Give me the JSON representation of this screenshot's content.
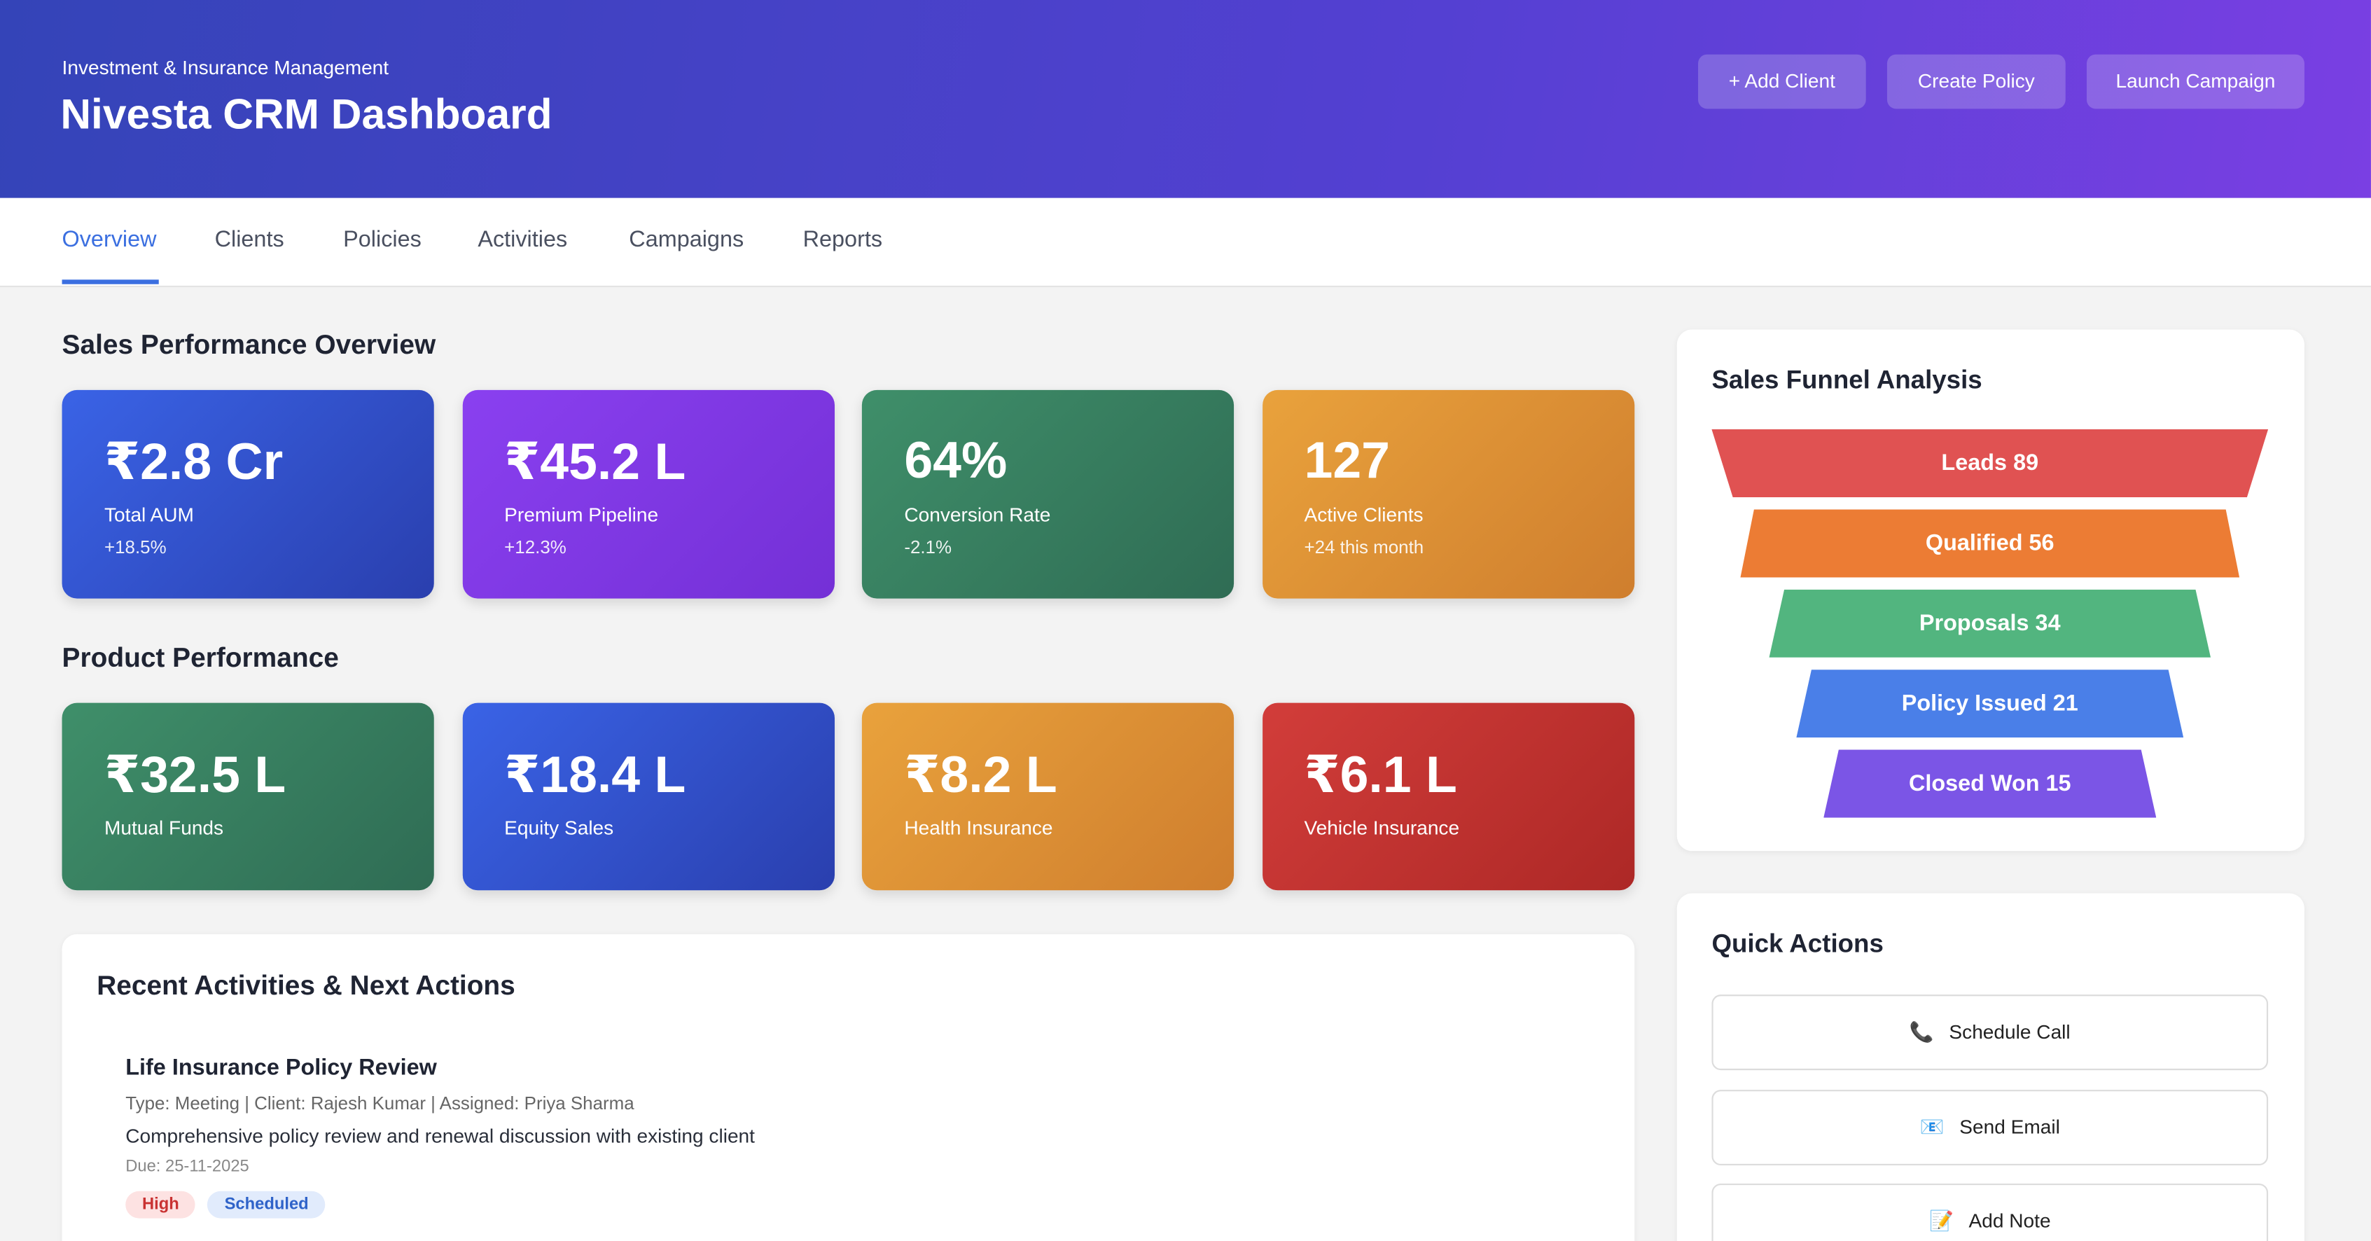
{
  "header": {
    "subtitle": "Investment & Insurance Management",
    "title": "Nivesta CRM Dashboard",
    "buttons": [
      "+ Add Client",
      "Create Policy",
      "Launch Campaign"
    ]
  },
  "nav": {
    "tabs": [
      "Overview",
      "Clients",
      "Policies",
      "Activities",
      "Campaigns",
      "Reports"
    ],
    "active": 0
  },
  "sales": {
    "title": "Sales Performance Overview",
    "cards": [
      {
        "value": "₹2.8 Cr",
        "label": "Total AUM",
        "change": "+18.5%"
      },
      {
        "value": "₹45.2 L",
        "label": "Premium Pipeline",
        "change": "+12.3%"
      },
      {
        "value": "64%",
        "label": "Conversion Rate",
        "change": "-2.1%"
      },
      {
        "value": "127",
        "label": "Active Clients",
        "change": "+24 this month"
      }
    ]
  },
  "product": {
    "title": "Product Performance",
    "cards": [
      {
        "value": "₹32.5 L",
        "label": "Mutual Funds"
      },
      {
        "value": "₹18.4 L",
        "label": "Equity Sales"
      },
      {
        "value": "₹8.2 L",
        "label": "Health Insurance"
      },
      {
        "value": "₹6.1 L",
        "label": "Vehicle Insurance"
      }
    ]
  },
  "activities": {
    "title": "Recent Activities & Next Actions",
    "items": [
      {
        "title": "Life Insurance Policy Review",
        "meta": "Type: Meeting | Client: Rajesh Kumar | Assigned: Priya Sharma",
        "description": "Comprehensive policy review and renewal discussion with existing client",
        "due": "Due: 25-11-2025",
        "tags": [
          "High",
          "Scheduled"
        ]
      }
    ]
  },
  "funnel": {
    "title": "Sales Funnel Analysis",
    "stages": [
      {
        "name": "Leads",
        "count": 89
      },
      {
        "name": "Qualified",
        "count": 56
      },
      {
        "name": "Proposals",
        "count": 34
      },
      {
        "name": "Policy Issued",
        "count": 21
      },
      {
        "name": "Closed Won",
        "count": 15
      }
    ]
  },
  "quick_actions": {
    "title": "Quick Actions",
    "items": [
      {
        "icon": "📞",
        "label": "Schedule Call"
      },
      {
        "icon": "📧",
        "label": "Send Email"
      },
      {
        "icon": "📝",
        "label": "Add Note"
      }
    ]
  }
}
